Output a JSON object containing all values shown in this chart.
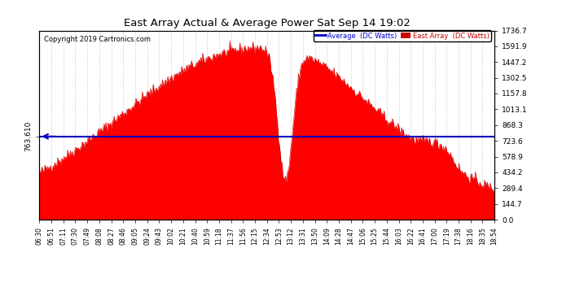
{
  "title": "East Array Actual & Average Power Sat Sep 14 19:02",
  "copyright": "Copyright 2019 Cartronics.com",
  "ylabel_right_values": [
    0.0,
    144.7,
    289.4,
    434.2,
    578.9,
    723.6,
    868.3,
    1013.1,
    1157.8,
    1302.5,
    1447.2,
    1591.9,
    1736.7
  ],
  "average_value": 763.61,
  "average_label": "763.610",
  "legend_entries": [
    "Average  (DC Watts)",
    "East Array  (DC Watts)"
  ],
  "legend_colors": [
    "#0000cc",
    "#cc0000"
  ],
  "fill_color": "#ff0000",
  "line_color": "#cc0000",
  "avg_line_color": "#0000bb",
  "background_color": "#ffffff",
  "grid_color": "#cccccc",
  "title_color": "#000000",
  "x_labels": [
    "06:30",
    "06:51",
    "07:11",
    "07:30",
    "07:49",
    "08:08",
    "08:27",
    "08:46",
    "09:05",
    "09:24",
    "09:43",
    "10:02",
    "10:21",
    "10:40",
    "10:59",
    "11:18",
    "11:37",
    "11:56",
    "12:15",
    "12:34",
    "12:53",
    "13:12",
    "13:31",
    "13:50",
    "14:09",
    "14:28",
    "14:47",
    "15:06",
    "15:25",
    "15:44",
    "16:03",
    "16:22",
    "16:41",
    "17:00",
    "17:19",
    "17:38",
    "18:16",
    "18:35",
    "18:54"
  ],
  "ymax": 1736.7,
  "ymin": 0.0,
  "total_minutes": 744
}
